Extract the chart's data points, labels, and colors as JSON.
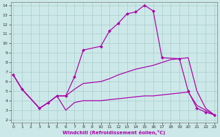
{
  "xlabel": "Windchill (Refroidissement éolien,°C)",
  "background_color": "#cce8e8",
  "grid_color": "#aacccc",
  "line_color": "#aa00aa",
  "x_ticks": [
    0,
    1,
    2,
    3,
    4,
    5,
    6,
    7,
    8,
    9,
    10,
    11,
    12,
    13,
    14,
    15,
    16,
    17,
    18,
    19,
    20,
    21,
    22,
    23
  ],
  "y_ticks": [
    2,
    3,
    4,
    5,
    6,
    7,
    8,
    9,
    10,
    11,
    12,
    13,
    14
  ],
  "xlim": [
    -0.3,
    23.3
  ],
  "ylim": [
    1.7,
    14.3
  ],
  "series_main": {
    "x": [
      0,
      1,
      3,
      4,
      5,
      6,
      7,
      8,
      10,
      11,
      12,
      13,
      14,
      15,
      16,
      17,
      19,
      20,
      21,
      22,
      23
    ],
    "y": [
      6.7,
      5.2,
      3.2,
      3.8,
      4.5,
      4.5,
      6.5,
      9.3,
      9.7,
      11.3,
      12.1,
      13.1,
      13.3,
      14.0,
      13.4,
      8.5,
      8.4,
      5.0,
      3.2,
      2.8,
      2.5
    ]
  },
  "series_upper": {
    "x": [
      0,
      1,
      3,
      4,
      5,
      6,
      7,
      8,
      10,
      11,
      12,
      13,
      14,
      15,
      16,
      17,
      18,
      19,
      20,
      21,
      22,
      23
    ],
    "y": [
      6.7,
      5.2,
      3.2,
      3.8,
      4.5,
      4.5,
      5.2,
      5.8,
      6.0,
      6.3,
      6.7,
      7.0,
      7.3,
      7.5,
      7.7,
      8.0,
      8.3,
      8.4,
      8.5,
      5.0,
      3.2,
      2.5
    ]
  },
  "series_lower": {
    "x": [
      0,
      1,
      3,
      4,
      5,
      6,
      7,
      8,
      10,
      11,
      12,
      13,
      14,
      15,
      16,
      17,
      18,
      19,
      20,
      21,
      22,
      23
    ],
    "y": [
      6.7,
      5.2,
      3.2,
      3.8,
      4.5,
      3.0,
      3.8,
      4.0,
      4.0,
      4.1,
      4.2,
      4.3,
      4.4,
      4.5,
      4.5,
      4.6,
      4.7,
      4.8,
      4.9,
      3.5,
      3.0,
      2.5
    ]
  }
}
